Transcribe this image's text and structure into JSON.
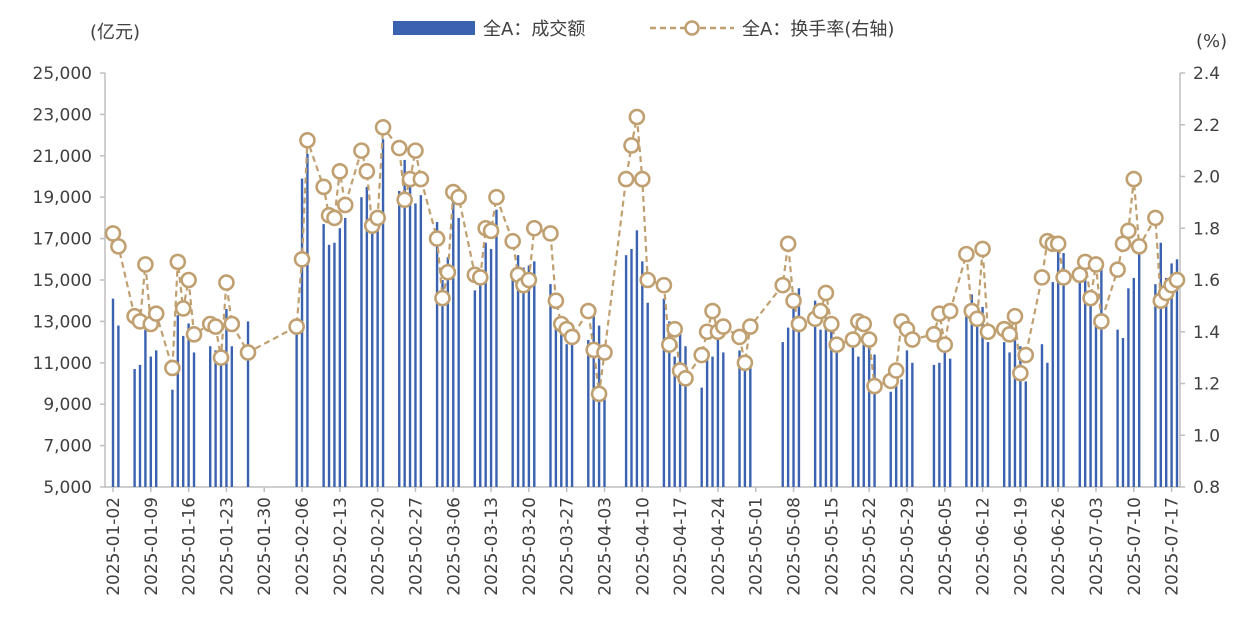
{
  "chart_data": {
    "type": "bar+line",
    "left_unit": "(亿元)",
    "right_unit": "(%)",
    "legend": [
      {
        "name": "全A：成交额",
        "kind": "bar",
        "color": "#3a62b0"
      },
      {
        "name": "全A：换手率(右轴)",
        "kind": "line",
        "color": "#c0a070"
      }
    ],
    "left_axis": {
      "min": 5000,
      "max": 25000,
      "ticks": [
        "5,000",
        "7,000",
        "9,000",
        "11,000",
        "13,000",
        "15,000",
        "17,000",
        "19,000",
        "21,000",
        "23,000",
        "25,000"
      ]
    },
    "right_axis": {
      "min": 0.8,
      "max": 2.4,
      "ticks": [
        "0.8",
        "1.0",
        "1.2",
        "1.4",
        "1.6",
        "1.8",
        "2.0",
        "2.2",
        "2.4"
      ]
    },
    "x_tick_labels": [
      "2025-01-02",
      "2025-01-09",
      "2025-01-16",
      "2025-01-23",
      "2025-01-30",
      "2025-02-06",
      "2025-02-13",
      "2025-02-20",
      "2025-02-27",
      "2025-03-06",
      "2025-03-13",
      "2025-03-20",
      "2025-03-27",
      "2025-04-03",
      "2025-04-10",
      "2025-04-17",
      "2025-04-24",
      "2025-05-01",
      "2025-05-08",
      "2025-05-15",
      "2025-05-22",
      "2025-05-29",
      "2025-06-05",
      "2025-06-12",
      "2025-06-19",
      "2025-06-26",
      "2025-07-03",
      "2025-07-10",
      "2025-07-17"
    ],
    "series": [
      {
        "name": "全A：成交额",
        "x": [
          "2025-01-02",
          "2025-01-03",
          "2025-01-06",
          "2025-01-07",
          "2025-01-08",
          "2025-01-09",
          "2025-01-10",
          "2025-01-13",
          "2025-01-14",
          "2025-01-15",
          "2025-01-16",
          "2025-01-17",
          "2025-01-20",
          "2025-01-21",
          "2025-01-22",
          "2025-01-23",
          "2025-01-24",
          "2025-01-27",
          "2025-02-05",
          "2025-02-06",
          "2025-02-07",
          "2025-02-10",
          "2025-02-11",
          "2025-02-12",
          "2025-02-13",
          "2025-02-14",
          "2025-02-17",
          "2025-02-18",
          "2025-02-19",
          "2025-02-20",
          "2025-02-21",
          "2025-02-24",
          "2025-02-25",
          "2025-02-26",
          "2025-02-27",
          "2025-02-28",
          "2025-03-03",
          "2025-03-04",
          "2025-03-05",
          "2025-03-06",
          "2025-03-07",
          "2025-03-10",
          "2025-03-11",
          "2025-03-12",
          "2025-03-13",
          "2025-03-14",
          "2025-03-17",
          "2025-03-18",
          "2025-03-19",
          "2025-03-20",
          "2025-03-21",
          "2025-03-24",
          "2025-03-25",
          "2025-03-26",
          "2025-03-27",
          "2025-03-28",
          "2025-03-31",
          "2025-04-01",
          "2025-04-02",
          "2025-04-03",
          "2025-04-07",
          "2025-04-08",
          "2025-04-09",
          "2025-04-10",
          "2025-04-11",
          "2025-04-14",
          "2025-04-15",
          "2025-04-16",
          "2025-04-17",
          "2025-04-18",
          "2025-04-21",
          "2025-04-22",
          "2025-04-23",
          "2025-04-24",
          "2025-04-25",
          "2025-04-28",
          "2025-04-29",
          "2025-04-30",
          "2025-05-06",
          "2025-05-07",
          "2025-05-08",
          "2025-05-09",
          "2025-05-12",
          "2025-05-13",
          "2025-05-14",
          "2025-05-15",
          "2025-05-16",
          "2025-05-19",
          "2025-05-20",
          "2025-05-21",
          "2025-05-22",
          "2025-05-23",
          "2025-05-26",
          "2025-05-27",
          "2025-05-28",
          "2025-05-29",
          "2025-05-30",
          "2025-06-03",
          "2025-06-04",
          "2025-06-05",
          "2025-06-06",
          "2025-06-09",
          "2025-06-10",
          "2025-06-11",
          "2025-06-12",
          "2025-06-13",
          "2025-06-16",
          "2025-06-17",
          "2025-06-18",
          "2025-06-19",
          "2025-06-20",
          "2025-06-23",
          "2025-06-24",
          "2025-06-25",
          "2025-06-26",
          "2025-06-27",
          "2025-06-30",
          "2025-07-01",
          "2025-07-02",
          "2025-07-03",
          "2025-07-04",
          "2025-07-07",
          "2025-07-08",
          "2025-07-09",
          "2025-07-10",
          "2025-07-11",
          "2025-07-14",
          "2025-07-15",
          "2025-07-16",
          "2025-07-17",
          "2025-07-18"
        ],
        "values": [
          14100,
          12800,
          10700,
          10900,
          12600,
          11300,
          11600,
          9700,
          13300,
          12300,
          12900,
          11500,
          11800,
          11600,
          10900,
          13600,
          11800,
          13000,
          12900,
          19900,
          21100,
          17700,
          16700,
          16800,
          17500,
          18000,
          19000,
          19500,
          17600,
          17400,
          21800,
          19300,
          20800,
          19900,
          18700,
          19100,
          17800,
          15000,
          16100,
          19100,
          18000,
          14500,
          15100,
          16800,
          16500,
          18400,
          15000,
          16200,
          15600,
          15700,
          15900,
          14800,
          12900,
          12400,
          11900,
          12700,
          12100,
          13300,
          12800,
          9700,
          16200,
          16500,
          17400,
          15900,
          13900,
          14100,
          13000,
          11300,
          12500,
          11800,
          9800,
          11200,
          11300,
          12500,
          11500,
          11600,
          11300,
          11200,
          12000,
          12700,
          13600,
          14600,
          14000,
          12600,
          13200,
          13000,
          11500,
          11800,
          11300,
          12200,
          11800,
          11400,
          9600,
          10100,
          10200,
          11600,
          11000,
          10900,
          11000,
          11800,
          11200,
          13600,
          14300,
          13800,
          13700,
          12000,
          12000,
          11500,
          12100,
          11800,
          10100,
          11900,
          11000,
          14900,
          16700,
          16300,
          15400,
          15100,
          14000,
          13100,
          15600,
          12600,
          12200,
          14600,
          15100,
          17000,
          14800,
          16800,
          15100,
          15800,
          16000
        ]
      },
      {
        "name": "全A：换手率(右轴)",
        "x": [
          "2025-01-02",
          "2025-01-03",
          "2025-01-06",
          "2025-01-07",
          "2025-01-08",
          "2025-01-09",
          "2025-01-10",
          "2025-01-13",
          "2025-01-14",
          "2025-01-15",
          "2025-01-16",
          "2025-01-17",
          "2025-01-20",
          "2025-01-21",
          "2025-01-22",
          "2025-01-23",
          "2025-01-24",
          "2025-01-27",
          "2025-02-05",
          "2025-02-06",
          "2025-02-07",
          "2025-02-10",
          "2025-02-11",
          "2025-02-12",
          "2025-02-13",
          "2025-02-14",
          "2025-02-17",
          "2025-02-18",
          "2025-02-19",
          "2025-02-20",
          "2025-02-21",
          "2025-02-24",
          "2025-02-25",
          "2025-02-26",
          "2025-02-27",
          "2025-02-28",
          "2025-03-03",
          "2025-03-04",
          "2025-03-05",
          "2025-03-06",
          "2025-03-07",
          "2025-03-10",
          "2025-03-11",
          "2025-03-12",
          "2025-03-13",
          "2025-03-14",
          "2025-03-17",
          "2025-03-18",
          "2025-03-19",
          "2025-03-20",
          "2025-03-21",
          "2025-03-24",
          "2025-03-25",
          "2025-03-26",
          "2025-03-27",
          "2025-03-28",
          "2025-03-31",
          "2025-04-01",
          "2025-04-02",
          "2025-04-03",
          "2025-04-07",
          "2025-04-08",
          "2025-04-09",
          "2025-04-10",
          "2025-04-11",
          "2025-04-14",
          "2025-04-15",
          "2025-04-16",
          "2025-04-17",
          "2025-04-18",
          "2025-04-21",
          "2025-04-22",
          "2025-04-23",
          "2025-04-24",
          "2025-04-25",
          "2025-04-28",
          "2025-04-29",
          "2025-04-30",
          "2025-05-06",
          "2025-05-07",
          "2025-05-08",
          "2025-05-09",
          "2025-05-12",
          "2025-05-13",
          "2025-05-14",
          "2025-05-15",
          "2025-05-16",
          "2025-05-19",
          "2025-05-20",
          "2025-05-21",
          "2025-05-22",
          "2025-05-23",
          "2025-05-26",
          "2025-05-27",
          "2025-05-28",
          "2025-05-29",
          "2025-05-30",
          "2025-06-03",
          "2025-06-04",
          "2025-06-05",
          "2025-06-06",
          "2025-06-09",
          "2025-06-10",
          "2025-06-11",
          "2025-06-12",
          "2025-06-13",
          "2025-06-16",
          "2025-06-17",
          "2025-06-18",
          "2025-06-19",
          "2025-06-20",
          "2025-06-23",
          "2025-06-24",
          "2025-06-25",
          "2025-06-26",
          "2025-06-27",
          "2025-06-30",
          "2025-07-01",
          "2025-07-02",
          "2025-07-03",
          "2025-07-04",
          "2025-07-07",
          "2025-07-08",
          "2025-07-09",
          "2025-07-10",
          "2025-07-11",
          "2025-07-14",
          "2025-07-15",
          "2025-07-16",
          "2025-07-17",
          "2025-07-18"
        ],
        "values": [
          1.78,
          1.73,
          1.46,
          1.44,
          1.66,
          1.43,
          1.47,
          1.26,
          1.67,
          1.49,
          1.6,
          1.39,
          1.43,
          1.42,
          1.3,
          1.59,
          1.43,
          1.32,
          1.42,
          1.68,
          2.14,
          1.96,
          1.85,
          1.84,
          2.02,
          1.89,
          2.1,
          2.02,
          1.81,
          1.84,
          2.19,
          2.11,
          1.91,
          1.99,
          2.1,
          1.99,
          1.76,
          1.53,
          1.63,
          1.94,
          1.92,
          1.62,
          1.61,
          1.8,
          1.79,
          1.92,
          1.75,
          1.62,
          1.58,
          1.6,
          1.8,
          1.78,
          1.52,
          1.43,
          1.41,
          1.38,
          1.48,
          1.33,
          1.16,
          1.32,
          1.99,
          2.12,
          2.23,
          1.99,
          1.6,
          1.58,
          1.35,
          1.41,
          1.25,
          1.22,
          1.31,
          1.4,
          1.48,
          1.4,
          1.42,
          1.38,
          1.28,
          1.42,
          1.58,
          1.74,
          1.52,
          1.43,
          1.45,
          1.48,
          1.55,
          1.43,
          1.35,
          1.37,
          1.44,
          1.43,
          1.37,
          1.19,
          1.21,
          1.25,
          1.44,
          1.41,
          1.37,
          1.39,
          1.47,
          1.35,
          1.48,
          1.7,
          1.48,
          1.45,
          1.72,
          1.4,
          1.41,
          1.39,
          1.46,
          1.24,
          1.31,
          1.61,
          1.75,
          1.74,
          1.74,
          1.61,
          1.62,
          1.67,
          1.53,
          1.66,
          1.44,
          1.64,
          1.74,
          1.79,
          1.99,
          1.73,
          1.84,
          1.52,
          1.55,
          1.58,
          1.6
        ]
      }
    ]
  }
}
